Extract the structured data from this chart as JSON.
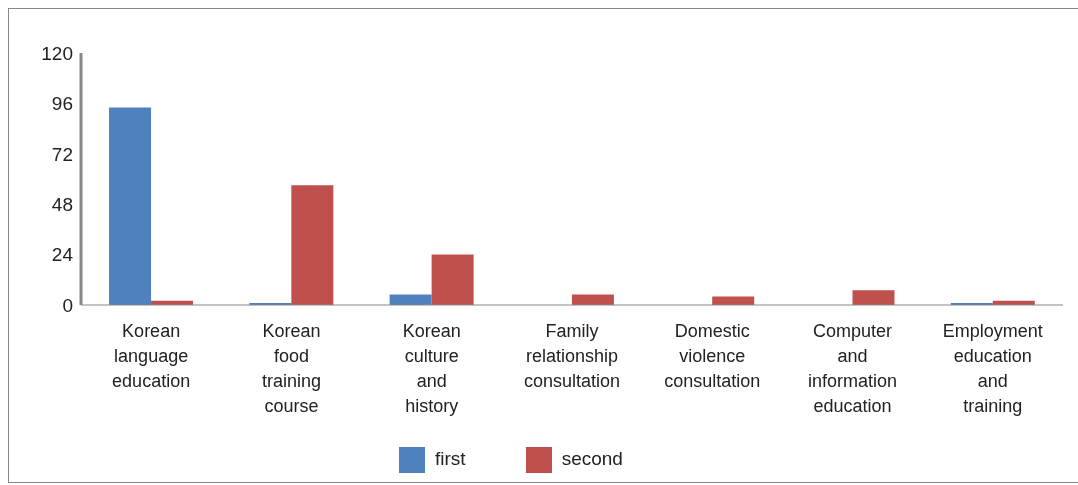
{
  "chart_data": {
    "type": "bar",
    "categories": [
      "Korean language education",
      "Korean food training course",
      "Korean culture and history",
      "Family relationship consultation",
      "Domestic violence consultation",
      "Computer and information education",
      "Employment education and training"
    ],
    "series": [
      {
        "name": "first",
        "color": "#4f81bd",
        "values": [
          94,
          1,
          5,
          0,
          0,
          0,
          1
        ]
      },
      {
        "name": "second",
        "color": "#c0504d",
        "values": [
          2,
          57,
          24,
          5,
          4,
          7,
          2
        ]
      }
    ],
    "ylim": [
      0,
      120
    ],
    "yticks": [
      0,
      24,
      48,
      72,
      96,
      120
    ],
    "grid": false,
    "legend": "bottom"
  }
}
